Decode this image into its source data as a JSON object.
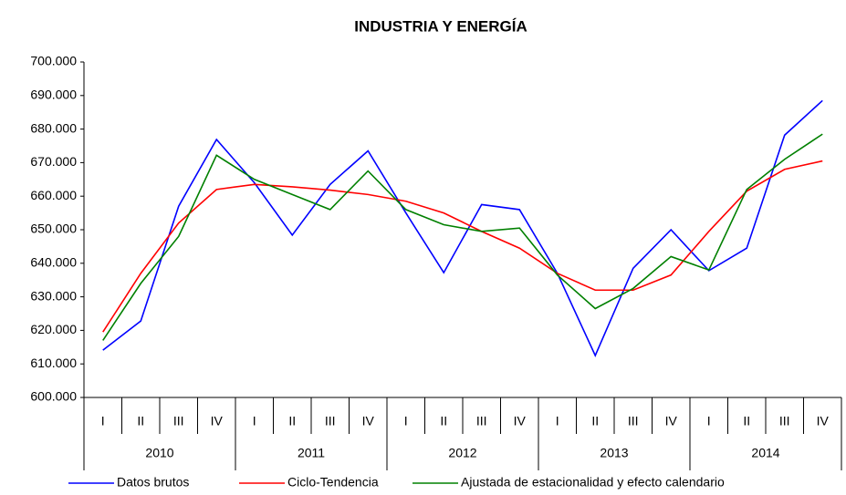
{
  "chart_data": {
    "type": "line",
    "title": "INDUSTRIA Y ENERGÍA",
    "categories": [
      "I",
      "II",
      "III",
      "IV",
      "I",
      "II",
      "III",
      "IV",
      "I",
      "II",
      "III",
      "IV",
      "I",
      "II",
      "III",
      "IV",
      "I",
      "II",
      "III",
      "IV"
    ],
    "groups": [
      "2010",
      "2011",
      "2012",
      "2013",
      "2014"
    ],
    "ylim": [
      600000,
      700000
    ],
    "yticks": [
      {
        "value": 600000,
        "label": "600.000"
      },
      {
        "value": 610000,
        "label": "610.000"
      },
      {
        "value": 620000,
        "label": "620.000"
      },
      {
        "value": 630000,
        "label": "630.000"
      },
      {
        "value": 640000,
        "label": "640.000"
      },
      {
        "value": 650000,
        "label": "650.000"
      },
      {
        "value": 660000,
        "label": "660.000"
      },
      {
        "value": 670000,
        "label": "670.000"
      },
      {
        "value": 680000,
        "label": "680.000"
      },
      {
        "value": 690000,
        "label": "690.000"
      },
      {
        "value": 700000,
        "label": "700.000"
      }
    ],
    "grid": false,
    "series": [
      {
        "name": "Datos brutos",
        "color": "#0000ff",
        "values": [
          614100,
          622800,
          657000,
          676900,
          664000,
          648400,
          663500,
          673500,
          655000,
          637200,
          657500,
          656000,
          637000,
          612500,
          638500,
          650000,
          637800,
          644500,
          678200,
          688500
        ]
      },
      {
        "name": "Ciclo-Tendencia",
        "color": "#ff0000",
        "values": [
          619500,
          637000,
          652000,
          662000,
          663500,
          662800,
          661800,
          660500,
          658500,
          655000,
          649500,
          644500,
          637000,
          632000,
          632000,
          636500,
          649500,
          661500,
          668000,
          670500
        ]
      },
      {
        "name": "Ajustada de estacionalidad y efecto calendario",
        "color": "#008000",
        "values": [
          617000,
          634000,
          648000,
          672200,
          665000,
          660500,
          656000,
          667500,
          656000,
          651500,
          649500,
          650500,
          636500,
          626500,
          632500,
          642000,
          638000,
          662000,
          671000,
          678500
        ]
      }
    ]
  }
}
